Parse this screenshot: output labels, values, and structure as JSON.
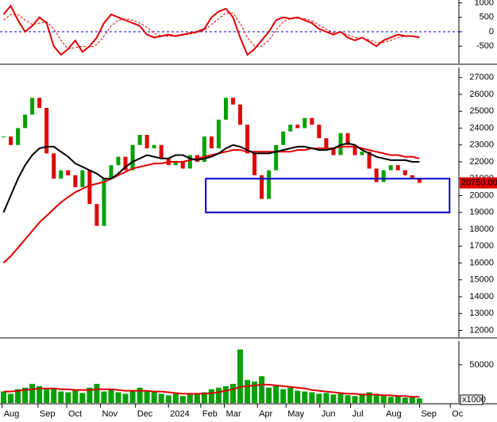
{
  "chart_data": [
    {
      "type": "line",
      "xlim": [
        0,
        64
      ],
      "ylim": [
        -1100,
        1100
      ],
      "yticks": [
        1000,
        500,
        0,
        -500
      ],
      "hline": 0,
      "hline_color": "#0000cc",
      "series": [
        {
          "color": "#e00000",
          "style": "solid",
          "values": [
            600,
            900,
            400,
            0,
            200,
            500,
            300,
            -500,
            -800,
            -600,
            -300,
            -700,
            -500,
            -200,
            300,
            600,
            500,
            400,
            300,
            200,
            -100,
            -200,
            -150,
            -100,
            -150,
            -100,
            -50,
            0,
            100,
            500,
            700,
            800,
            500,
            -200,
            -800,
            -600,
            -300,
            0,
            400,
            500,
            450,
            500,
            400,
            300,
            100,
            0,
            -100,
            0,
            -200,
            -300,
            -200,
            -350,
            -500,
            -300,
            -200,
            -100,
            -150,
            -150,
            -200
          ]
        },
        {
          "color": "#e00000",
          "style": "dashed",
          "values": [
            400,
            600,
            600,
            400,
            250,
            300,
            350,
            100,
            -300,
            -600,
            -550,
            -500,
            -550,
            -450,
            -150,
            200,
            400,
            450,
            400,
            300,
            150,
            -50,
            -150,
            -150,
            -150,
            -120,
            -80,
            -30,
            50,
            250,
            450,
            650,
            650,
            300,
            -200,
            -500,
            -500,
            -300,
            50,
            350,
            450,
            470,
            450,
            370,
            230,
            80,
            -30,
            -30,
            -100,
            -200,
            -230,
            -280,
            -380,
            -370,
            -300,
            -200,
            -150,
            -150,
            -170
          ]
        }
      ]
    },
    {
      "type": "candlestick",
      "xlim": [
        0,
        64
      ],
      "ylim": [
        11600,
        27600
      ],
      "yticks": [
        12000,
        13000,
        14000,
        15000,
        16000,
        17000,
        18000,
        19000,
        20000,
        21000,
        22000,
        23000,
        24000,
        25000,
        26000,
        27000
      ],
      "up_color": "#00a000",
      "down_color": "#e00000",
      "close": [
        23500,
        23000,
        24000,
        24800,
        25800,
        25200,
        22500,
        21000,
        21500,
        21200,
        20500,
        21500,
        19500,
        18200,
        21000,
        21800,
        22300,
        21500,
        23000,
        23600,
        22800,
        23000,
        22200,
        21800,
        22000,
        21600,
        22400,
        22000,
        23500,
        22800,
        24500,
        25800,
        25400,
        24200,
        22500,
        21200,
        19800,
        21500,
        23000,
        23800,
        24200,
        24000,
        24600,
        24200,
        23400,
        22800,
        22400,
        23700,
        23000,
        22400,
        22600,
        21600,
        20800,
        21500,
        21800,
        21500,
        21200,
        21000,
        20750
      ],
      "series": [
        {
          "color": "#e00000",
          "values": [
            16000,
            16400,
            16900,
            17400,
            17900,
            18400,
            18800,
            19200,
            19600,
            19900,
            20200,
            20400,
            20600,
            20700,
            20800,
            21000,
            21200,
            21400,
            21600,
            21700,
            21800,
            21900,
            21900,
            22000,
            22000,
            22000,
            22100,
            22200,
            22300,
            22400,
            22500,
            22600,
            22700,
            22700,
            22600,
            22600,
            22600,
            22600,
            22600,
            22600,
            22600,
            22700,
            22700,
            22800,
            22800,
            22800,
            22800,
            22900,
            22900,
            22900,
            22800,
            22700,
            22600,
            22500,
            22400,
            22400,
            22300,
            22300,
            22200
          ]
        },
        {
          "color": "#000000",
          "values": [
            19000,
            20000,
            21000,
            21800,
            22400,
            22800,
            22900,
            22900,
            22600,
            22300,
            21900,
            21700,
            21500,
            21300,
            21000,
            21000,
            21300,
            21700,
            22000,
            22200,
            22400,
            22300,
            22200,
            22200,
            22400,
            22400,
            22200,
            22100,
            22200,
            22300,
            22500,
            22800,
            23000,
            22900,
            22700,
            22500,
            22500,
            22500,
            22600,
            22700,
            22800,
            22900,
            22900,
            22800,
            22700,
            22700,
            22800,
            23000,
            23100,
            23000,
            22700,
            22500,
            22300,
            22200,
            22100,
            22100,
            22100,
            22000,
            22000
          ]
        }
      ],
      "zone": {
        "x": [
          28.7,
          62.7
        ],
        "y": [
          19000,
          21000
        ],
        "color": "#0000cc"
      },
      "last_price": {
        "value": 20750,
        "label": "20750.00"
      }
    },
    {
      "type": "bar",
      "xlim": [
        0,
        64
      ],
      "ylim": [
        0,
        81000
      ],
      "yticks": [
        50000
      ],
      "unit": "x1000",
      "values": [
        15000,
        12000,
        18000,
        20000,
        25000,
        22000,
        18000,
        20000,
        15000,
        14000,
        16000,
        13000,
        20000,
        25000,
        15000,
        18000,
        14000,
        12000,
        16000,
        20000,
        15000,
        14000,
        12000,
        10000,
        12000,
        9000,
        11000,
        12000,
        14000,
        18000,
        20000,
        22000,
        25000,
        70000,
        30000,
        28000,
        35000,
        20000,
        22000,
        18000,
        20000,
        16000,
        15000,
        14000,
        12000,
        13000,
        11000,
        12000,
        10000,
        9000,
        12000,
        14000,
        10000,
        9000,
        8000,
        9000,
        7000,
        8000,
        6000
      ],
      "color": "#00a000",
      "ma_color": "#e00000",
      "ma": [
        15000,
        15000,
        16000,
        17000,
        18000,
        19000,
        19000,
        19000,
        18000,
        18000,
        17000,
        17000,
        17000,
        18000,
        18000,
        18000,
        17000,
        16000,
        16000,
        16000,
        16000,
        15000,
        15000,
        14000,
        13000,
        12000,
        12000,
        12000,
        12000,
        13000,
        14000,
        16000,
        18000,
        21000,
        22000,
        23000,
        24000,
        24000,
        23000,
        22000,
        21000,
        20000,
        19000,
        17000,
        16000,
        15000,
        14000,
        13000,
        12000,
        12000,
        11000,
        11000,
        11000,
        10000,
        10000,
        9000,
        9000,
        8000,
        8000
      ],
      "xticks": [
        {
          "value": 0.3,
          "label": "Aug"
        },
        {
          "value": 5.3,
          "label": "Sep"
        },
        {
          "value": 9.3,
          "label": "Oct"
        },
        {
          "value": 14,
          "label": "Nov"
        },
        {
          "value": 18.9,
          "label": "Dec"
        },
        {
          "value": 23.5,
          "label": "2024"
        },
        {
          "value": 28,
          "label": "Feb"
        },
        {
          "value": 31.3,
          "label": "Mar"
        },
        {
          "value": 35.9,
          "label": "Apr"
        },
        {
          "value": 39.9,
          "label": "May"
        },
        {
          "value": 44.6,
          "label": "Jun"
        },
        {
          "value": 48.9,
          "label": "Jul"
        },
        {
          "value": 53.6,
          "label": "Aug"
        },
        {
          "value": 58.5,
          "label": "Sep"
        },
        {
          "value": 62.8,
          "label": "Oc"
        }
      ]
    }
  ]
}
